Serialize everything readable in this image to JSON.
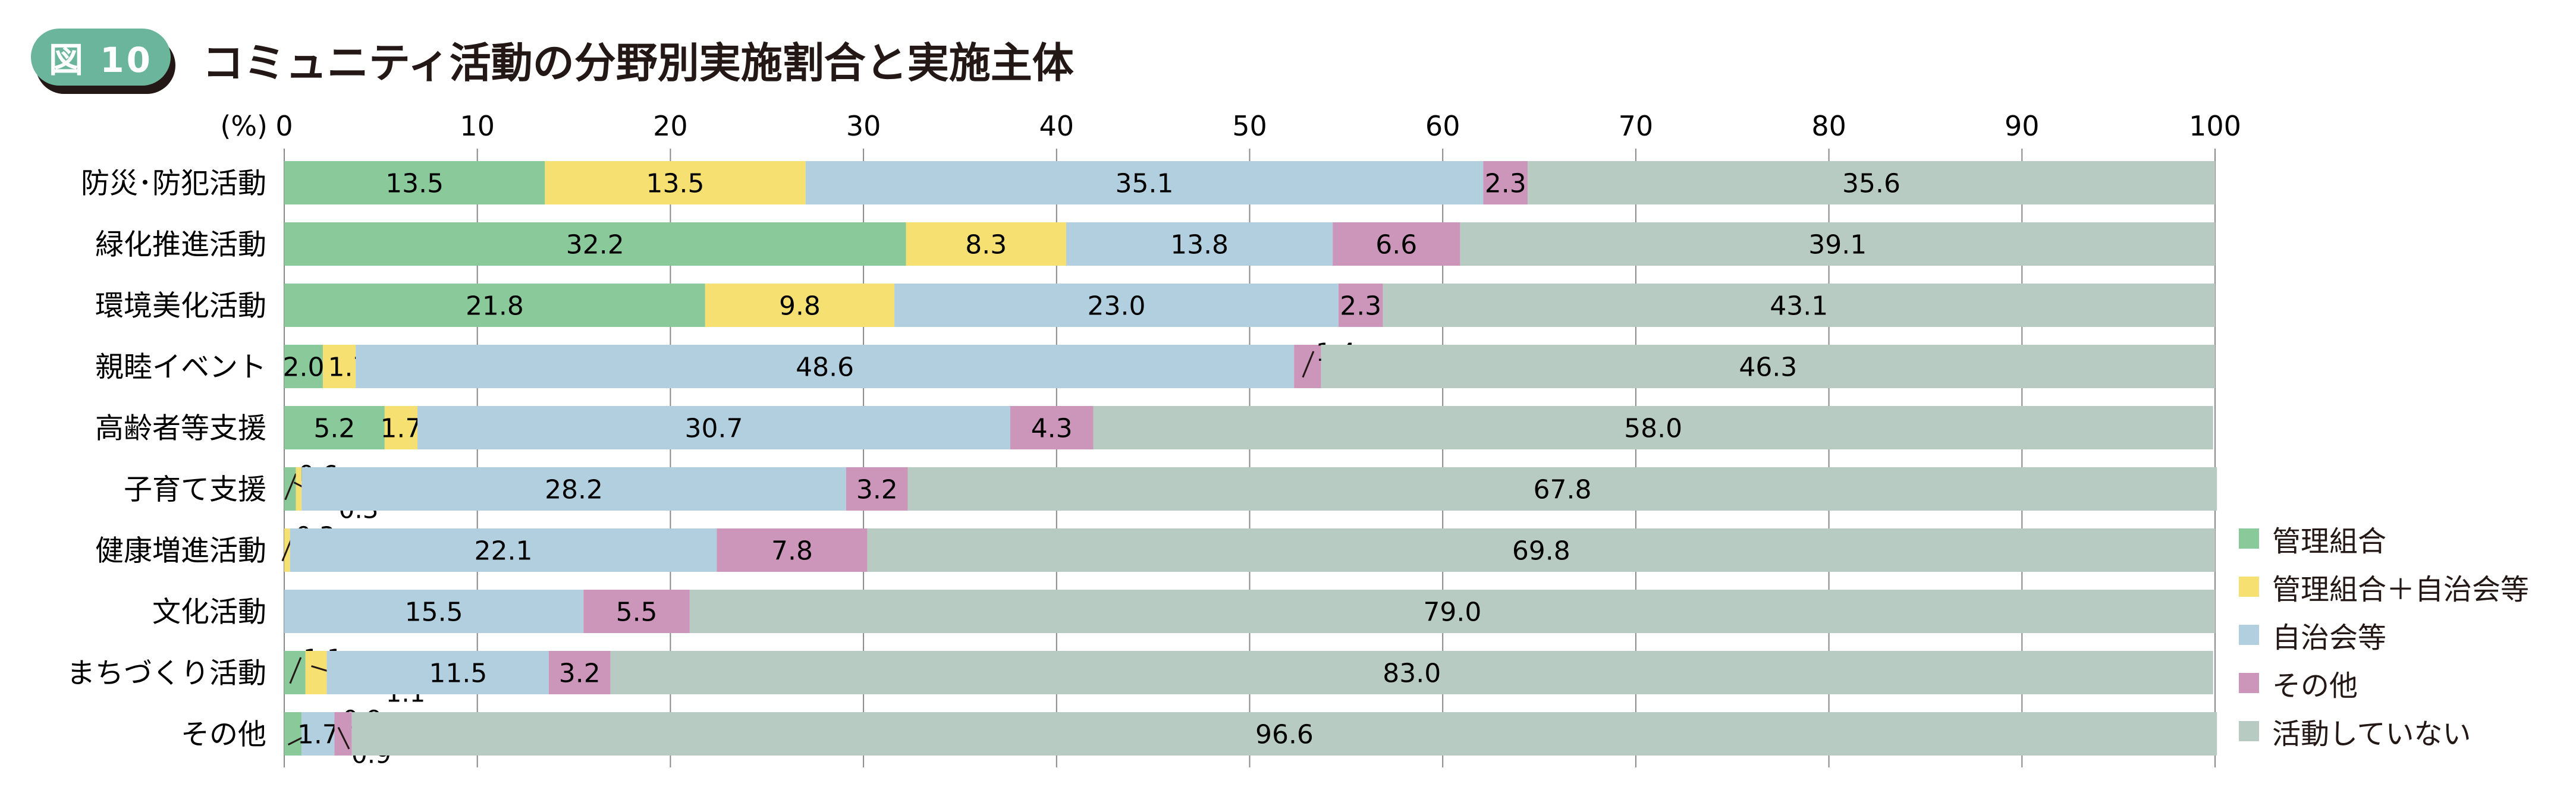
{
  "header": {
    "badge": "図 10",
    "title": "コミュニティ活動の分野別実施割合と実施主体"
  },
  "chart_data": {
    "type": "bar",
    "stacked": true,
    "orientation": "horizontal",
    "title": "コミュニティ活動の分野別実施割合と実施主体",
    "unit_label": "(%)",
    "xlim": [
      0,
      100
    ],
    "xticks": [
      0,
      10,
      20,
      30,
      40,
      50,
      60,
      70,
      80,
      90,
      100
    ],
    "grid": true,
    "legend_position": "right-bottom",
    "categories": [
      "防災･防犯活動",
      "緑化推進活動",
      "環境美化活動",
      "親睦イベント",
      "高齢者等支援",
      "子育て支援",
      "健康増進活動",
      "文化活動",
      "まちづくり活動",
      "その他"
    ],
    "series": [
      {
        "name": "管理組合",
        "color": "#8ac99a",
        "values": [
          13.5,
          32.2,
          21.8,
          2.0,
          5.2,
          0.6,
          0,
          0,
          1.1,
          0.9
        ]
      },
      {
        "name": "管理組合＋自治会等",
        "color": "#f6e071",
        "values": [
          13.5,
          8.3,
          9.8,
          1.7,
          1.7,
          0.3,
          0.3,
          0,
          1.1,
          0
        ]
      },
      {
        "name": "自治会等",
        "color": "#b2cfe0",
        "values": [
          35.1,
          13.8,
          23.0,
          48.6,
          30.7,
          28.2,
          22.1,
          15.5,
          11.5,
          1.7
        ]
      },
      {
        "name": "その他",
        "color": "#cc96ba",
        "values": [
          2.3,
          6.6,
          2.3,
          1.4,
          4.3,
          3.2,
          7.8,
          5.5,
          3.2,
          0.9
        ]
      },
      {
        "name": "活動していない",
        "color": "#b8cbc2",
        "values": [
          35.6,
          39.1,
          43.1,
          46.3,
          58.0,
          67.8,
          69.8,
          79.0,
          83.0,
          96.6
        ]
      }
    ]
  }
}
